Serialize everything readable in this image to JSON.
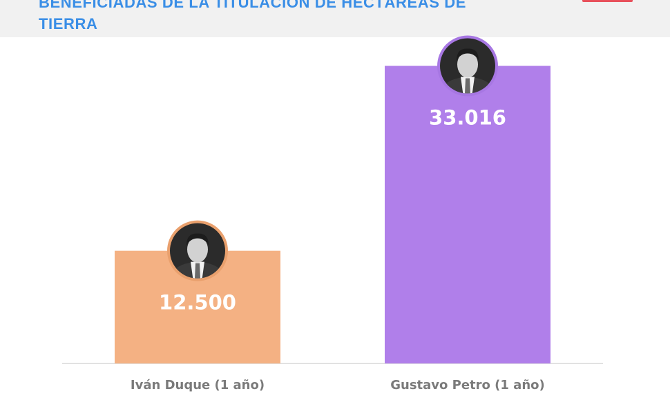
{
  "header": {
    "title": "BENEFICIADAS DE LA TITULACIÓN DE HECTÁREAS DE TIERRA",
    "logo_color": "#e8505b"
  },
  "chart_data": {
    "type": "bar",
    "title": "BENEFICIADAS DE LA TITULACIÓN DE HECTÁREAS DE TIERRA",
    "categories": [
      "Iván Duque (1 año)",
      "Gustavo Petro (1 año)"
    ],
    "values": [
      12500,
      33016
    ],
    "value_labels": [
      "12.500",
      "33.016"
    ],
    "colors": [
      "#f4b183",
      "#b07fea"
    ],
    "avatar_ring_colors": [
      "#e9a06d",
      "#a777e3"
    ],
    "avatars": [
      "duque-portrait",
      "petro-portrait"
    ],
    "xlabel": "",
    "ylabel": "",
    "ylim": [
      0,
      36500
    ],
    "grid": false,
    "legend": "none"
  }
}
